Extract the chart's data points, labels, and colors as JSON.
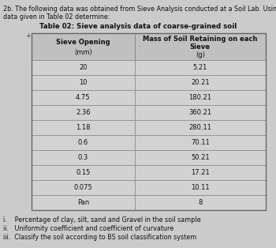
{
  "title_line1": "2b. The following data was obtained from Sieve Analysis conducted at a Soil Lab. Using the",
  "title_line2": "data given in Table 02 determine:",
  "table_title": "Table 02: Sieve analysis data of coarse-grained soil",
  "col1_header_line1": "Sieve Opening",
  "col1_header_line2": "(mm)",
  "col2_header_line1": "Mass of Soil Retaining on each",
  "col2_header_line2": "Sieve",
  "col2_header_line3": "(g)",
  "sieve_openings": [
    "20",
    "10",
    "4.75",
    "2.36",
    "1.18",
    "0.6",
    "0.3",
    "0.15",
    "0.075",
    "Pan"
  ],
  "masses": [
    "5.21",
    "20.21",
    "180.21",
    "360.21",
    "280.11",
    "70.11",
    "50.21",
    "17.21",
    "10.11",
    "8"
  ],
  "footnote_i": "i.    Percentage of clay, silt, sand and Gravel in the soil sample",
  "footnote_ii": "ii.   Uniformity coefficient and coefficient of curvature",
  "footnote_iii": "iii.  Classify the soil according to BS soil classification system",
  "bg_color": "#cbcbcb",
  "cell_bg": "#d2d2d2",
  "header_bg": "#c0c0c0",
  "border_color": "#888888",
  "text_color": "#111111",
  "fs_intro": 5.8,
  "fs_table_title": 6.2,
  "fs_header": 6.0,
  "fs_cell": 6.0,
  "fs_footnote": 5.8,
  "plus_symbol": "+"
}
